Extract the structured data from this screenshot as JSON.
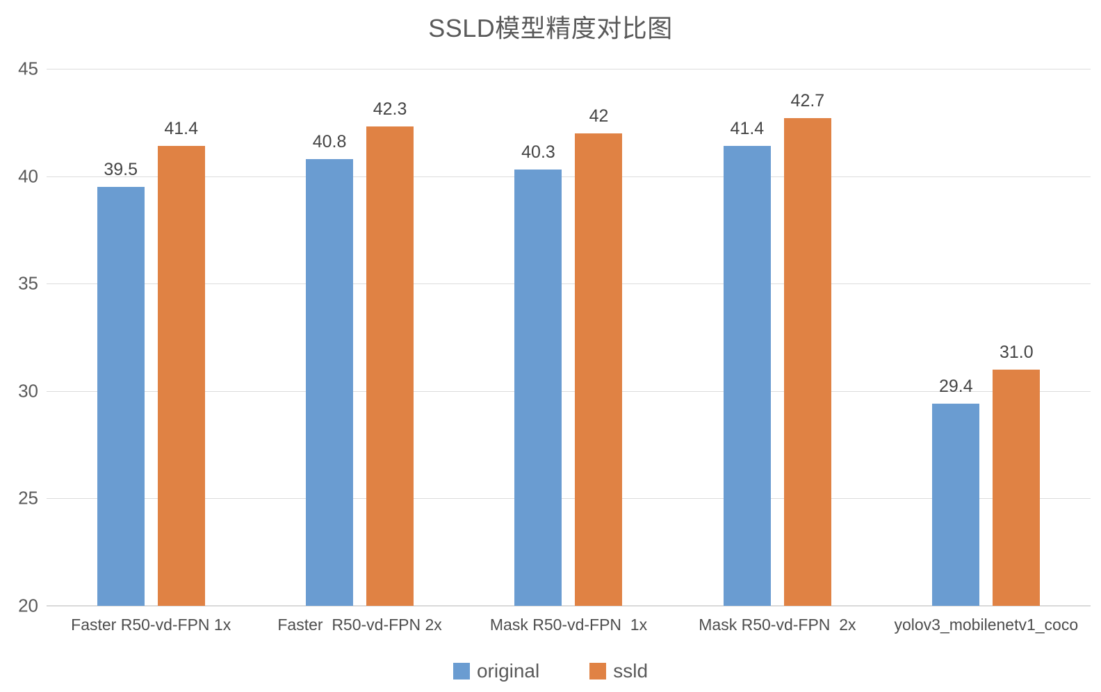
{
  "title": "SSLD模型精度对比图",
  "colors": {
    "original": "#6A9CD1",
    "ssld": "#E08244",
    "gridline": "#DCDCDC",
    "axis_line": "#D9D9D9",
    "title_text": "#595959",
    "tick_text": "#595959",
    "value_text": "#444444"
  },
  "chart_data": {
    "type": "bar",
    "title": "SSLD模型精度对比图",
    "categories": [
      "Faster R50-vd-FPN 1x",
      "Faster  R50-vd-FPN 2x",
      "Mask R50-vd-FPN  1x",
      "Mask R50-vd-FPN  2x",
      "yolov3_mobilenetv1_coco"
    ],
    "series": [
      {
        "name": "original",
        "color": "#6A9CD1",
        "values": [
          39.5,
          40.8,
          40.3,
          41.4,
          29.4
        ],
        "labels": [
          "39.5",
          "40.8",
          "40.3",
          "41.4",
          "29.4"
        ]
      },
      {
        "name": "ssld",
        "color": "#E08244",
        "values": [
          41.4,
          42.3,
          42.0,
          42.7,
          31.0
        ],
        "labels": [
          "41.4",
          "42.3",
          "42",
          "42.7",
          "31.0"
        ]
      }
    ],
    "xlabel": "",
    "ylabel": "",
    "ylim": [
      20,
      45
    ],
    "yticks": [
      20,
      25,
      30,
      35,
      40,
      45
    ],
    "grid": true,
    "legend_position": "bottom"
  },
  "legend": {
    "items": [
      {
        "label": "original"
      },
      {
        "label": "ssld"
      }
    ]
  }
}
